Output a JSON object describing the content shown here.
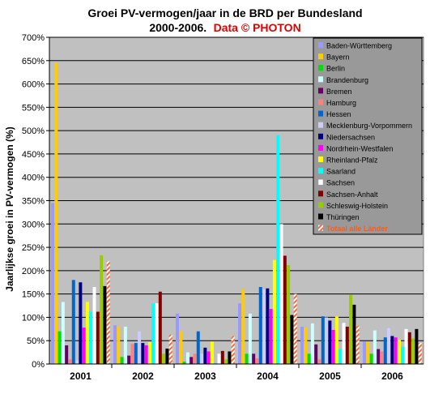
{
  "chart_data": {
    "type": "bar",
    "title_line1": "Groei PV-vermogen/jaar in de BRD per Bundesland",
    "title_line2": "2000-2006.",
    "credit": "Data © PHOTON",
    "ylabel": "Jaarlijkse groei in PV-vermogen (%)",
    "xlabel": "",
    "ylim": [
      0,
      700
    ],
    "yticks": [
      "0%",
      "50%",
      "100%",
      "150%",
      "200%",
      "250%",
      "300%",
      "350%",
      "400%",
      "450%",
      "500%",
      "550%",
      "600%",
      "650%",
      "700%"
    ],
    "grid": true,
    "legend_position": "right",
    "categories": [
      "2001",
      "2002",
      "2003",
      "2004",
      "2005",
      "2006"
    ],
    "series": [
      {
        "name": "Baden-Württemberg",
        "color": "#9999ff",
        "values": [
          345,
          83,
          108,
          130,
          80,
          48
        ]
      },
      {
        "name": "Bayern",
        "color": "#ffcc00",
        "values": [
          645,
          80,
          70,
          160,
          78,
          47
        ]
      },
      {
        "name": "Berlin",
        "color": "#00dd00",
        "values": [
          70,
          15,
          5,
          22,
          22,
          22
        ]
      },
      {
        "name": "Brandenburg",
        "color": "#ccffff",
        "values": [
          133,
          80,
          25,
          108,
          87,
          72
        ]
      },
      {
        "name": "Bremen",
        "color": "#660066",
        "values": [
          40,
          18,
          15,
          22,
          42,
          32
        ]
      },
      {
        "name": "Hamburg",
        "color": "#ff8080",
        "values": [
          10,
          43,
          22,
          12,
          10,
          27
        ]
      },
      {
        "name": "Hessen",
        "color": "#0066cc",
        "values": [
          180,
          45,
          70,
          165,
          102,
          57
        ]
      },
      {
        "name": "Mecklenburg-Vorpommern",
        "color": "#ccccff",
        "values": [
          8,
          70,
          22,
          160,
          100,
          77
        ]
      },
      {
        "name": "Niedersachsen",
        "color": "#000080",
        "values": [
          175,
          45,
          35,
          162,
          93,
          60
        ]
      },
      {
        "name": "Nordrhein-Westfalen",
        "color": "#ff00ff",
        "values": [
          78,
          40,
          27,
          118,
          73,
          57
        ]
      },
      {
        "name": "Rheinland-Pfalz",
        "color": "#ffff00",
        "values": [
          133,
          47,
          48,
          223,
          102,
          52
        ]
      },
      {
        "name": "Saarland",
        "color": "#00ffff",
        "values": [
          112,
          130,
          2,
          490,
          32,
          37
        ]
      },
      {
        "name": "Sachsen",
        "color": "#ffffff",
        "values": [
          165,
          130,
          22,
          300,
          88,
          75
        ]
      },
      {
        "name": "Sachsen-Anhalt",
        "color": "#800000",
        "values": [
          112,
          155,
          28,
          232,
          80,
          68
        ]
      },
      {
        "name": "Schleswig-Holstein",
        "color": "#99cc00",
        "values": [
          233,
          22,
          10,
          212,
          148,
          55
        ]
      },
      {
        "name": "Thüringen",
        "color": "#000000",
        "values": [
          167,
          33,
          27,
          105,
          127,
          75
        ]
      },
      {
        "name": "Totaal alle Länder",
        "color": "#ff6633",
        "hatched": true,
        "values": [
          220,
          63,
          60,
          150,
          82,
          45
        ]
      }
    ]
  }
}
